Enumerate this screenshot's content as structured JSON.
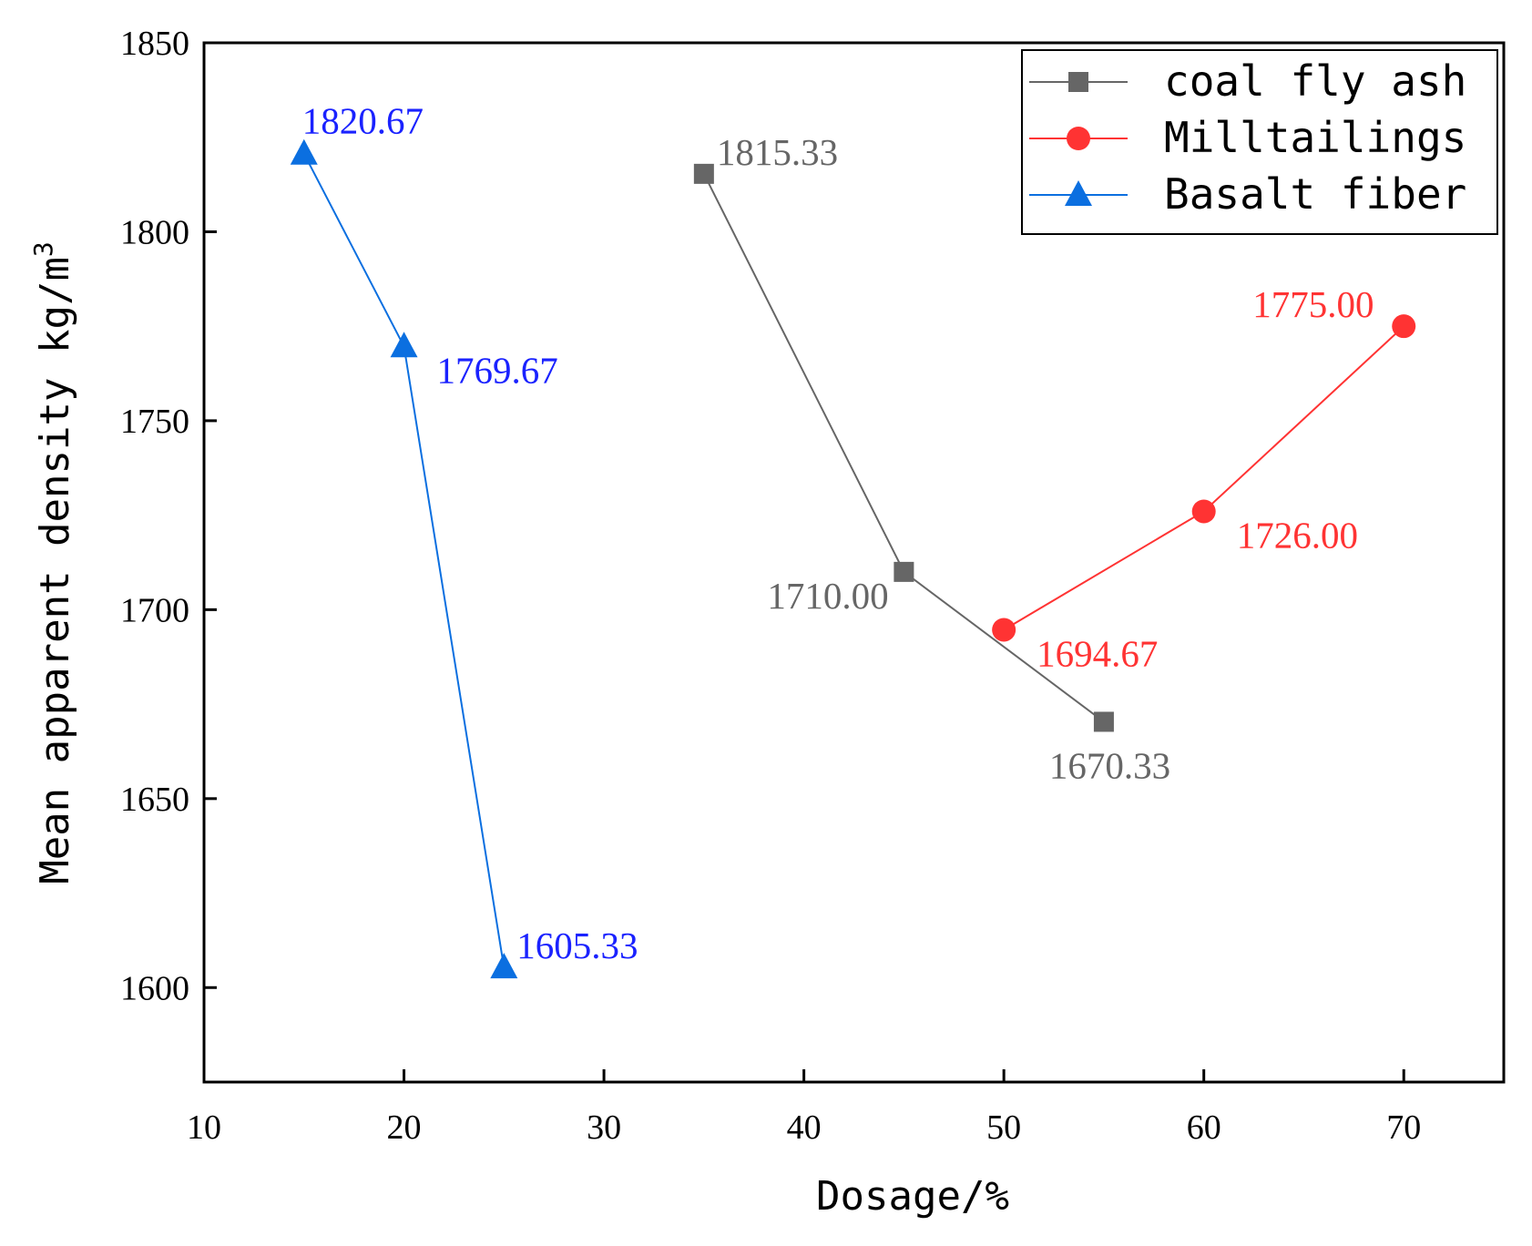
{
  "chart_data": {
    "type": "line",
    "title": "",
    "xlabel": "Dosage/%",
    "ylabel": "Mean apparent density kg/m",
    "ylabel_superscript": "3",
    "xlim": [
      10,
      75
    ],
    "ylim": [
      1575,
      1850
    ],
    "x_ticks": [
      10,
      20,
      30,
      40,
      50,
      60,
      70
    ],
    "y_ticks": [
      1600,
      1650,
      1700,
      1750,
      1800,
      1850
    ],
    "grid": false,
    "legend_position": "top-right",
    "series": [
      {
        "name": "coal fly ash",
        "color": "#666666",
        "marker": "square",
        "x": [
          35,
          45,
          55
        ],
        "values": [
          1815.33,
          1710.0,
          1670.33
        ],
        "labels": [
          "1815.33",
          "1710.00",
          "1670.33"
        ],
        "label_position": [
          "right",
          "left-below",
          "below"
        ]
      },
      {
        "name": "Milltailings",
        "color": "#ff3333",
        "marker": "circle",
        "x": [
          50,
          60,
          70
        ],
        "values": [
          1694.67,
          1726.0,
          1775.0
        ],
        "labels": [
          "1694.67",
          "1726.00",
          "1775.00"
        ],
        "label_position": [
          "right-below",
          "right-below",
          "left-above"
        ]
      },
      {
        "name": "Basalt fiber",
        "color": "#0b6fe0",
        "marker": "triangle",
        "label_color": "#1a22ff",
        "x": [
          15,
          20,
          25
        ],
        "values": [
          1820.67,
          1769.67,
          1605.33
        ],
        "labels": [
          "1820.67",
          "1769.67",
          "1605.33"
        ],
        "label_position": [
          "right-above",
          "right-below",
          "right"
        ]
      }
    ]
  }
}
